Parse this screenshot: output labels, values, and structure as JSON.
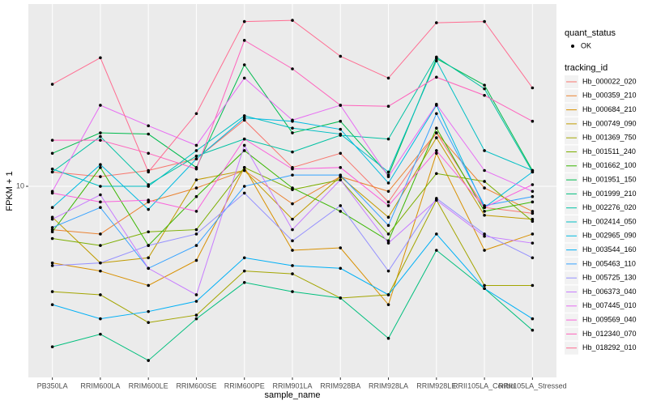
{
  "chart_data": {
    "type": "line",
    "x_label": "sample_name",
    "y_label": "FPKM + 1",
    "categories": [
      "PB350LA",
      "RRIM600LA",
      "RRIM600LE",
      "RRIM600SE",
      "RRIM600PE",
      "RRIM901LA",
      "RRIM928BA",
      "RRIM928LA",
      "RRIM928LE",
      "RRII105LA_Control",
      "RRII105LA_Stressed"
    ],
    "ylim": [
      3.16,
      30
    ],
    "yticks": [
      10
    ],
    "log_y": true,
    "grid": true,
    "point_legend_title": "quant_status",
    "point_legend_entry": "OK",
    "legend_title": "tracking_id",
    "legend_position": "right",
    "series": [
      {
        "name": "Hb_000022_020",
        "color": "#F8766D",
        "values": [
          10.9,
          10.6,
          11,
          11.8,
          14.9,
          11.2,
          12.2,
          9.1,
          13.8,
          8.8,
          8.5
        ]
      },
      {
        "name": "Hb_000359_210",
        "color": "#EA8331",
        "values": [
          7.7,
          7.5,
          9.1,
          9.9,
          11,
          9,
          10.6,
          9.7,
          13.8,
          9.9,
          8.6
        ]
      },
      {
        "name": "Hb_000684_210",
        "color": "#D89000",
        "values": [
          6.3,
          6.0,
          5.5,
          6.4,
          11.2,
          6.8,
          6.9,
          4.9,
          12.2,
          6.8,
          7.5
        ]
      },
      {
        "name": "Hb_000749_090",
        "color": "#C09B00",
        "values": [
          8.3,
          6.3,
          6.5,
          10.4,
          11,
          8.2,
          10.6,
          8.3,
          13.4,
          8.4,
          8.2
        ]
      },
      {
        "name": "Hb_001369_750",
        "color": "#A3A500",
        "values": [
          5.3,
          5.2,
          4.4,
          4.6,
          6.0,
          5.9,
          5.1,
          5.2,
          9.2,
          5.5,
          5.5
        ]
      },
      {
        "name": "Hb_001511_240",
        "color": "#7CAE00",
        "values": [
          7.3,
          7.0,
          7.6,
          7.7,
          11.2,
          9.8,
          10.4,
          7.5,
          10.8,
          10.3,
          8.1
        ]
      },
      {
        "name": "Hb_001662_100",
        "color": "#39B600",
        "values": [
          7.6,
          11.2,
          7.0,
          9.4,
          12.4,
          9.9,
          8.6,
          7.2,
          14.2,
          8.6,
          9.1
        ]
      },
      {
        "name": "Hb_001951_150",
        "color": "#00BB4E",
        "values": [
          12.2,
          13.8,
          13.7,
          11.2,
          20.8,
          13.8,
          14.8,
          10.7,
          21.6,
          18.4,
          11
        ]
      },
      {
        "name": "Hb_001999_210",
        "color": "#00BF7D",
        "values": [
          3.8,
          4.1,
          3.5,
          4.5,
          5.6,
          5.3,
          5.1,
          4.0,
          6.8,
          5.4,
          4.2
        ]
      },
      {
        "name": "Hb_002276_020",
        "color": "#00C1A3",
        "values": [
          10.9,
          13.5,
          10.1,
          12.0,
          13.3,
          12.3,
          13.6,
          13.3,
          21.8,
          18.0,
          10.9
        ]
      },
      {
        "name": "Hb_002414_050",
        "color": "#00BFC4",
        "values": [
          11.1,
          10,
          10,
          12.4,
          15.3,
          14.2,
          13.7,
          10.9,
          21.3,
          12.4,
          11
        ]
      },
      {
        "name": "Hb_002965_090",
        "color": "#00BAE0",
        "values": [
          8.8,
          11.4,
          8.7,
          11.8,
          15.1,
          14.8,
          14.1,
          10.2,
          16.3,
          8.8,
          10.9
        ]
      },
      {
        "name": "Hb_003544_160",
        "color": "#00B0F6",
        "values": [
          4.9,
          4.5,
          4.7,
          5.0,
          6.5,
          6.2,
          6.1,
          5.2,
          7.5,
          5.4,
          4.5
        ]
      },
      {
        "name": "Hb_005463_110",
        "color": "#35A2FF",
        "values": [
          7.8,
          8.8,
          6.1,
          7.0,
          10,
          10.7,
          10.7,
          7.9,
          15.5,
          8.9,
          9.4
        ]
      },
      {
        "name": "Hb_005725_130",
        "color": "#9590FF",
        "values": [
          6.2,
          6.3,
          7.0,
          7.5,
          9.6,
          7.2,
          8.9,
          6.0,
          9.3,
          7.5,
          6.5
        ]
      },
      {
        "name": "Hb_006373_040",
        "color": "#C77CFF",
        "values": [
          8.2,
          9.5,
          6.1,
          5.2,
          12.8,
          7.7,
          10.4,
          7.1,
          9.2,
          7.4,
          7.1
        ]
      },
      {
        "name": "Hb_007445_010",
        "color": "#E76BF3",
        "values": [
          9.7,
          16.3,
          14.4,
          12.8,
          19.2,
          14.9,
          16.3,
          10.6,
          16.4,
          11,
          9.7
        ]
      },
      {
        "name": "Hb_009569_040",
        "color": "#FA62DB",
        "values": [
          9.6,
          9.1,
          9.2,
          8.6,
          13.3,
          11.1,
          11.2,
          8.9,
          12.4,
          8.8,
          10.1
        ]
      },
      {
        "name": "Hb_012340_070",
        "color": "#FF62BC",
        "values": [
          13.2,
          13.2,
          12.2,
          11.1,
          24.1,
          20.3,
          16.3,
          16.2,
          19.3,
          17.3,
          14.8
        ]
      },
      {
        "name": "Hb_018292_010",
        "color": "#FF6C91",
        "values": [
          18.5,
          21.7,
          10.9,
          15.5,
          27,
          27.2,
          21.9,
          19.2,
          26.8,
          27,
          18.1
        ]
      }
    ]
  }
}
